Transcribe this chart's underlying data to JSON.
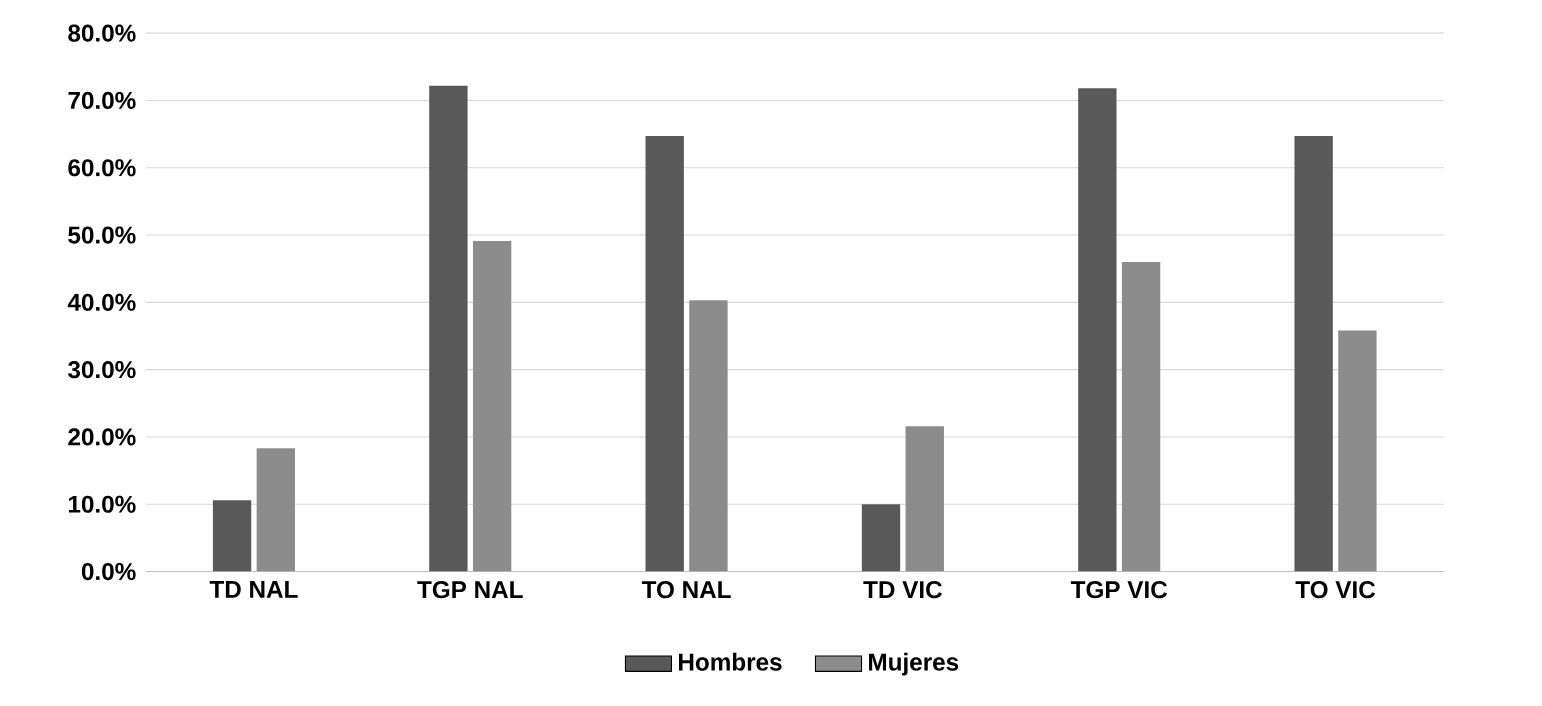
{
  "chart_data": {
    "type": "bar",
    "categories": [
      "TD NAL",
      "TGP NAL",
      "TO NAL",
      "TD VIC",
      "TGP VIC",
      "TO VIC"
    ],
    "series": [
      {
        "name": "Hombres",
        "color": "#595959",
        "values": [
          10.6,
          72.2,
          64.7,
          10.0,
          71.8,
          64.7
        ]
      },
      {
        "name": "Mujeres",
        "color": "#8c8c8c",
        "values": [
          18.3,
          49.1,
          40.3,
          21.6,
          46.0,
          35.8
        ]
      }
    ],
    "ylim": [
      0,
      80
    ],
    "yticks": [
      {
        "value": 0,
        "label": "0.0%"
      },
      {
        "value": 10,
        "label": "10.0%"
      },
      {
        "value": 20,
        "label": "20.0%"
      },
      {
        "value": 30,
        "label": "30.0%"
      },
      {
        "value": 40,
        "label": "40.0%"
      },
      {
        "value": 50,
        "label": "50.0%"
      },
      {
        "value": 60,
        "label": "60.0%"
      },
      {
        "value": 70,
        "label": "70.0%"
      },
      {
        "value": 80,
        "label": "80.0%"
      }
    ],
    "grid": "y",
    "legend": "bottom"
  }
}
